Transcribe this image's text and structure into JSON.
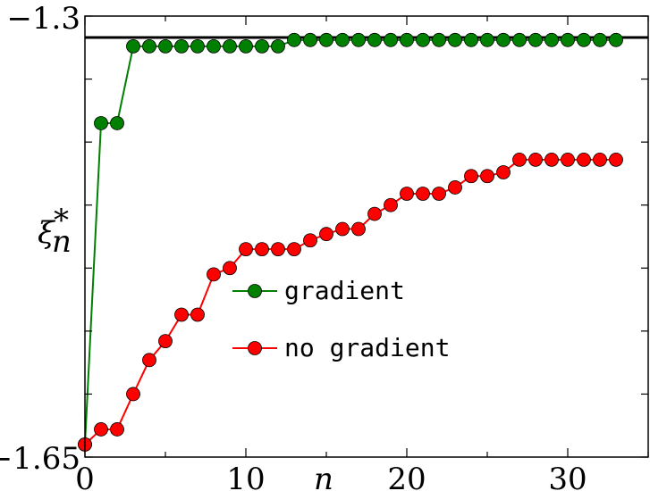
{
  "chart_data": {
    "type": "line",
    "xlabel": "n",
    "ylabel_main": "ξ",
    "ylabel_sub": "n",
    "ylabel_sup": "*",
    "xlim": [
      0,
      35
    ],
    "ylim": [
      -1.65,
      -1.3
    ],
    "x_ticks": [
      0,
      10,
      20,
      30
    ],
    "x_tick_labels": [
      "0",
      "10",
      "20",
      "30"
    ],
    "y_tick_labels": [
      "−1.3",
      "−1.65"
    ],
    "reference_line": -1.317,
    "legend_position": "center",
    "grid": false,
    "series": [
      {
        "name": "gradient",
        "color": "#008000",
        "x": [
          0,
          1,
          2,
          3,
          4,
          5,
          6,
          7,
          8,
          9,
          10,
          11,
          12,
          13,
          14,
          15,
          16,
          17,
          18,
          19,
          20,
          21,
          22,
          23,
          24,
          25,
          26,
          27,
          28,
          29,
          30,
          31,
          32,
          33
        ],
        "values": [
          -1.64,
          -1.385,
          -1.385,
          -1.324,
          -1.324,
          -1.324,
          -1.324,
          -1.324,
          -1.324,
          -1.324,
          -1.324,
          -1.324,
          -1.324,
          -1.319,
          -1.319,
          -1.319,
          -1.319,
          -1.319,
          -1.319,
          -1.319,
          -1.319,
          -1.319,
          -1.319,
          -1.319,
          -1.319,
          -1.319,
          -1.319,
          -1.319,
          -1.319,
          -1.319,
          -1.319,
          -1.319,
          -1.319,
          -1.319
        ]
      },
      {
        "name": "no gradient",
        "color": "#ff0000",
        "x": [
          0,
          1,
          2,
          3,
          4,
          5,
          6,
          7,
          8,
          9,
          10,
          11,
          12,
          13,
          14,
          15,
          16,
          17,
          18,
          19,
          20,
          21,
          22,
          23,
          24,
          25,
          26,
          27,
          28,
          29,
          30,
          31,
          32,
          33
        ],
        "values": [
          -1.64,
          -1.628,
          -1.628,
          -1.6,
          -1.573,
          -1.558,
          -1.537,
          -1.537,
          -1.505,
          -1.5,
          -1.485,
          -1.485,
          -1.485,
          -1.485,
          -1.478,
          -1.473,
          -1.469,
          -1.469,
          -1.457,
          -1.45,
          -1.441,
          -1.441,
          -1.441,
          -1.436,
          -1.427,
          -1.427,
          -1.424,
          -1.414,
          -1.414,
          -1.414,
          -1.414,
          -1.414,
          -1.414,
          -1.414
        ]
      }
    ]
  }
}
